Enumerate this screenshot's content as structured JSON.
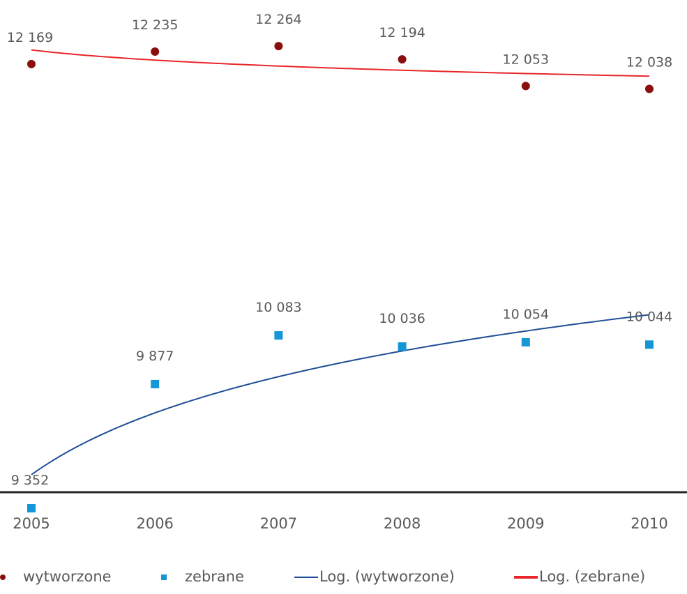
{
  "chart_data": {
    "type": "scatter",
    "x": [
      "2005",
      "2006",
      "2007",
      "2008",
      "2009",
      "2010"
    ],
    "series": [
      {
        "name": "wytworzone",
        "marker": "circle",
        "color": "#8b0e0e",
        "values": [
          12169,
          12235,
          12264,
          12194,
          12053,
          12038
        ],
        "labels": [
          "12 169",
          "12 235",
          "12 264",
          "12 194",
          "12 053",
          "12 038"
        ]
      },
      {
        "name": "zebrane",
        "marker": "square",
        "color": "#1596d6",
        "values": [
          9352,
          9877,
          10083,
          10036,
          10054,
          10044
        ],
        "labels": [
          "9 352",
          "9 877",
          "10 083",
          "10 036",
          "10 054",
          "10 044"
        ]
      }
    ],
    "trendlines": [
      {
        "name": "Log. (wytworzone)",
        "color": "#1f4e96",
        "type": "logarithmic"
      },
      {
        "name": "Log. (zebrane)",
        "color": "#e8262a",
        "type": "logarithmic"
      }
    ],
    "grid": false,
    "legend_position": "bottom"
  }
}
